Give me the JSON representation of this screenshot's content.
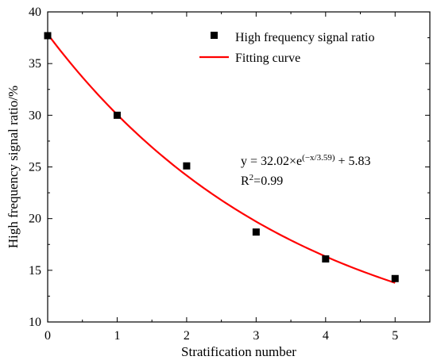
{
  "chart_data": {
    "type": "scatter",
    "xlabel": "Stratification number",
    "ylabel": "High frequency signal ratio/%",
    "xlim": [
      0,
      5.5
    ],
    "ylim": [
      10,
      40
    ],
    "xticks": [
      0,
      1,
      2,
      3,
      4,
      5
    ],
    "yticks": [
      10,
      15,
      20,
      25,
      30,
      35,
      40
    ],
    "xtick_labels": [
      "0",
      "1",
      "2",
      "3",
      "4",
      "5"
    ],
    "ytick_labels": [
      "10",
      "15",
      "20",
      "25",
      "30",
      "35",
      "40"
    ],
    "grid": false,
    "legend_position": "top-right",
    "series": [
      {
        "name": "High frequency signal ratio",
        "kind": "scatter",
        "marker": "square",
        "color": "#000000",
        "x": [
          0,
          1,
          2,
          3,
          4,
          5
        ],
        "y": [
          37.7,
          30.0,
          25.1,
          18.7,
          16.1,
          14.2
        ]
      },
      {
        "name": "Fitting curve",
        "kind": "line",
        "color": "#ff0000",
        "equation": {
          "a": 32.02,
          "t": 3.59,
          "c": 5.83,
          "x_range": [
            0,
            5
          ]
        }
      }
    ],
    "annotation": {
      "eq_prefix": "y = 32.02×e",
      "eq_exponent": "(−x/3.59)",
      "eq_suffix": " + 5.83",
      "r2_prefix": "R",
      "r2_sup": "2",
      "r2_value": "=0.99"
    }
  }
}
